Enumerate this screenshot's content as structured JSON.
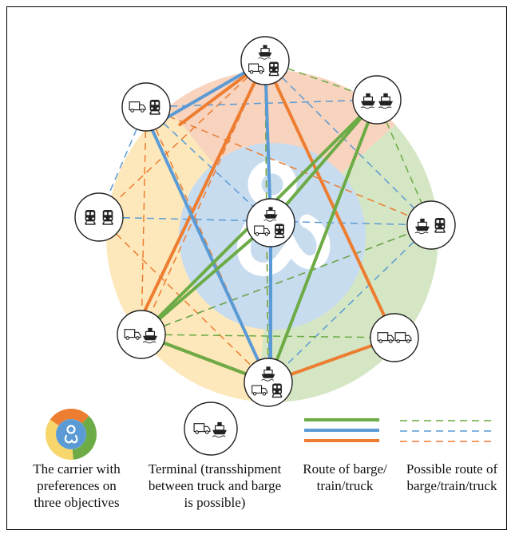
{
  "colors": {
    "barge": "#6cab45",
    "train": "#5b9bd5",
    "truck": "#ed7d31",
    "sector_orange": "#f8d3bd",
    "sector_green": "#d5e6c5",
    "sector_yellow": "#fde8bc",
    "inner_circle": "#c8dcef",
    "carrier_icon": "#5b9bd5"
  },
  "terminals": [
    {
      "id": "t-top",
      "icons": [
        "barge",
        "truck",
        "train"
      ]
    },
    {
      "id": "t-upper-left",
      "icons": [
        "truck",
        "train"
      ]
    },
    {
      "id": "t-upper-right",
      "icons": [
        "barge",
        "barge"
      ]
    },
    {
      "id": "t-left",
      "icons": [
        "train",
        "train"
      ]
    },
    {
      "id": "t-right",
      "icons": [
        "barge",
        "train"
      ]
    },
    {
      "id": "t-center",
      "icons": [
        "barge",
        "truck",
        "train"
      ]
    },
    {
      "id": "t-lower-left",
      "icons": [
        "truck",
        "barge"
      ]
    },
    {
      "id": "t-lower-right",
      "icons": [
        "truck",
        "truck"
      ]
    },
    {
      "id": "t-bottom",
      "icons": [
        "barge",
        "truck",
        "train"
      ]
    }
  ],
  "legend": {
    "carrier_lines": [
      "The carrier with",
      "preferences on",
      "three objectives"
    ],
    "terminal_lines": [
      "Terminal (transshipment",
      "between truck and barge",
      "is possible)"
    ],
    "route_lines": [
      "Route of barge/",
      "train/truck"
    ],
    "possible_route_lines": [
      "Possible route of",
      "barge/train/truck"
    ],
    "terminal_icons": [
      "truck",
      "barge"
    ]
  }
}
